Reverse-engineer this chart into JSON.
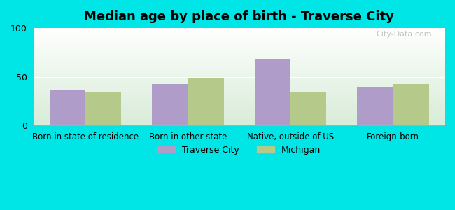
{
  "title": "Median age by place of birth - Traverse City",
  "categories": [
    "Born in state of residence",
    "Born in other state",
    "Native, outside of US",
    "Foreign-born"
  ],
  "traverse_city": [
    37,
    43,
    68,
    40
  ],
  "michigan": [
    35,
    49,
    34,
    43
  ],
  "traverse_city_color": "#b09cc8",
  "michigan_color": "#b5c98a",
  "background_color": "#00e5e5",
  "plot_bg_top": "#ffffff",
  "plot_bg_bottom": "#d8ecd8",
  "ylim": [
    0,
    100
  ],
  "yticks": [
    0,
    50,
    100
  ],
  "bar_width": 0.35,
  "legend_traverse": "Traverse City",
  "legend_michigan": "Michigan",
  "watermark": "City-Data.com"
}
